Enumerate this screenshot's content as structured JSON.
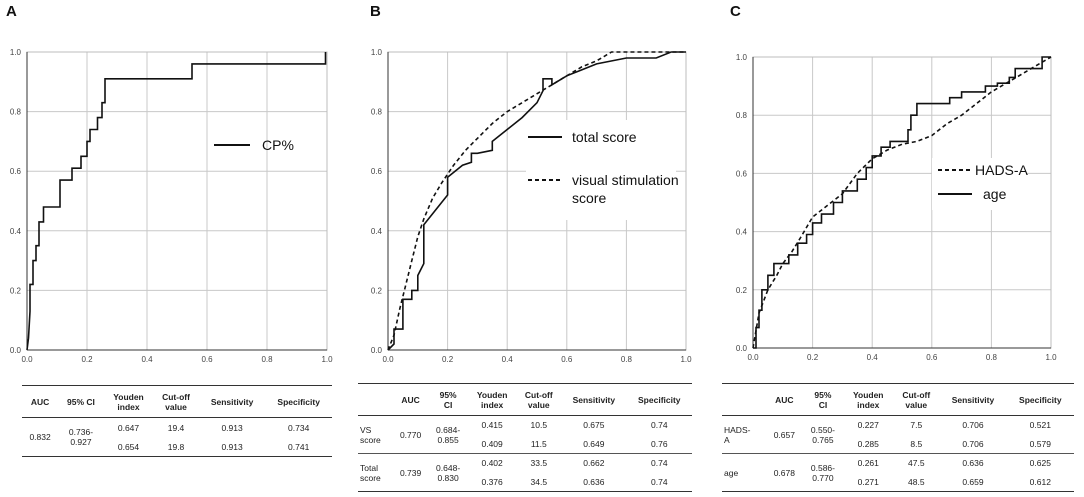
{
  "panels": {
    "a": {
      "letter": "A"
    },
    "b": {
      "letter": "B"
    },
    "c": {
      "letter": "C"
    }
  },
  "axis_ticks": {
    "x": [
      "0.0",
      "0.2",
      "0.4",
      "0.6",
      "0.8",
      "1.0"
    ],
    "y": [
      "0.0",
      "0.2",
      "0.4",
      "0.6",
      "0.8",
      "1.0"
    ]
  },
  "chart_data": [
    {
      "type": "line",
      "panel": "A",
      "xlim": [
        0,
        1
      ],
      "ylim": [
        0,
        1
      ],
      "grid": true,
      "legend_position": "center-right",
      "series": [
        {
          "name": "CP%",
          "style": "solid",
          "x": [
            0,
            0.005,
            0.01,
            0.01,
            0.02,
            0.02,
            0.03,
            0.03,
            0.04,
            0.04,
            0.055,
            0.055,
            0.07,
            0.07,
            0.11,
            0.11,
            0.15,
            0.15,
            0.18,
            0.18,
            0.2,
            0.2,
            0.21,
            0.21,
            0.235,
            0.235,
            0.25,
            0.25,
            0.26,
            0.26,
            0.55,
            0.55,
            0.995,
            0.995
          ],
          "y": [
            0,
            0.04,
            0.13,
            0.22,
            0.22,
            0.3,
            0.3,
            0.35,
            0.35,
            0.43,
            0.43,
            0.48,
            0.48,
            0.48,
            0.48,
            0.57,
            0.57,
            0.61,
            0.61,
            0.65,
            0.65,
            0.7,
            0.7,
            0.74,
            0.74,
            0.78,
            0.78,
            0.83,
            0.83,
            0.91,
            0.91,
            0.96,
            0.96,
            1.0
          ]
        }
      ]
    },
    {
      "type": "line",
      "panel": "B",
      "xlim": [
        0,
        1
      ],
      "ylim": [
        0,
        1
      ],
      "grid": true,
      "legend_position": "top-right",
      "series": [
        {
          "name": "total score",
          "style": "solid",
          "x": [
            0,
            0.02,
            0.02,
            0.05,
            0.05,
            0.08,
            0.08,
            0.1,
            0.1,
            0.12,
            0.12,
            0.16,
            0.2,
            0.2,
            0.25,
            0.28,
            0.28,
            0.3,
            0.35,
            0.35,
            0.4,
            0.45,
            0.5,
            0.52,
            0.52,
            0.55,
            0.55,
            0.6,
            0.65,
            0.7,
            0.8,
            0.9,
            0.95,
            1.0
          ],
          "y": [
            0,
            0.02,
            0.07,
            0.07,
            0.17,
            0.17,
            0.2,
            0.2,
            0.25,
            0.29,
            0.42,
            0.47,
            0.52,
            0.58,
            0.62,
            0.63,
            0.66,
            0.66,
            0.67,
            0.7,
            0.74,
            0.78,
            0.83,
            0.87,
            0.91,
            0.91,
            0.89,
            0.92,
            0.94,
            0.96,
            0.98,
            0.98,
            1.0,
            1.0
          ]
        },
        {
          "name": "visual stimulation score",
          "style": "dashed",
          "x": [
            0,
            0.02,
            0.04,
            0.06,
            0.08,
            0.1,
            0.12,
            0.15,
            0.18,
            0.22,
            0.26,
            0.3,
            0.35,
            0.4,
            0.45,
            0.5,
            0.55,
            0.6,
            0.65,
            0.7,
            0.75,
            0.8,
            0.85,
            0.9,
            0.95,
            1.0
          ],
          "y": [
            0,
            0.05,
            0.14,
            0.22,
            0.3,
            0.38,
            0.44,
            0.51,
            0.56,
            0.62,
            0.67,
            0.71,
            0.76,
            0.8,
            0.83,
            0.86,
            0.89,
            0.92,
            0.95,
            0.97,
            1.0,
            1.0,
            1.0,
            1.0,
            1.0,
            1.0
          ]
        }
      ]
    },
    {
      "type": "line",
      "panel": "C",
      "xlim": [
        0,
        1
      ],
      "ylim": [
        0,
        1
      ],
      "grid": true,
      "legend_position": "center-right",
      "series": [
        {
          "name": "HADS-A",
          "style": "dashed",
          "x": [
            0,
            0.02,
            0.05,
            0.08,
            0.1,
            0.13,
            0.16,
            0.2,
            0.25,
            0.3,
            0.35,
            0.4,
            0.45,
            0.5,
            0.55,
            0.6,
            0.65,
            0.7,
            0.75,
            0.8,
            0.85,
            0.9,
            0.95,
            1.0
          ],
          "y": [
            0,
            0.12,
            0.2,
            0.25,
            0.29,
            0.33,
            0.38,
            0.45,
            0.49,
            0.53,
            0.6,
            0.65,
            0.68,
            0.7,
            0.71,
            0.73,
            0.77,
            0.8,
            0.84,
            0.88,
            0.91,
            0.94,
            0.97,
            1.0
          ]
        },
        {
          "name": "age",
          "style": "solid",
          "x": [
            0,
            0.01,
            0.01,
            0.02,
            0.02,
            0.03,
            0.03,
            0.05,
            0.05,
            0.07,
            0.07,
            0.12,
            0.12,
            0.15,
            0.15,
            0.18,
            0.18,
            0.2,
            0.2,
            0.23,
            0.23,
            0.27,
            0.27,
            0.3,
            0.3,
            0.35,
            0.35,
            0.38,
            0.38,
            0.4,
            0.4,
            0.43,
            0.43,
            0.46,
            0.46,
            0.52,
            0.52,
            0.53,
            0.53,
            0.55,
            0.55,
            0.63,
            0.63,
            0.66,
            0.66,
            0.7,
            0.7,
            0.78,
            0.78,
            0.82,
            0.82,
            0.86,
            0.86,
            0.88,
            0.88,
            0.95,
            0.95,
            0.97,
            0.97,
            1.0
          ],
          "y": [
            0,
            0,
            0.07,
            0.07,
            0.13,
            0.13,
            0.2,
            0.2,
            0.25,
            0.25,
            0.29,
            0.29,
            0.32,
            0.32,
            0.36,
            0.36,
            0.39,
            0.39,
            0.43,
            0.43,
            0.46,
            0.46,
            0.5,
            0.5,
            0.54,
            0.54,
            0.58,
            0.58,
            0.62,
            0.62,
            0.66,
            0.66,
            0.69,
            0.69,
            0.71,
            0.71,
            0.75,
            0.75,
            0.8,
            0.8,
            0.84,
            0.84,
            0.84,
            0.84,
            0.86,
            0.86,
            0.88,
            0.88,
            0.9,
            0.9,
            0.91,
            0.91,
            0.93,
            0.93,
            0.96,
            0.96,
            0.96,
            0.96,
            1.0,
            1.0
          ]
        }
      ]
    }
  ],
  "legends": {
    "a": {
      "item1": "CP%"
    },
    "b": {
      "item1": "total score",
      "item2_line1": "visual stimulation",
      "item2_line2": "score"
    },
    "c": {
      "item1": "HADS-A",
      "item2": "age"
    }
  },
  "table_a": {
    "headers": {
      "auc": "AUC",
      "ci": "95% CI",
      "youden1": "Youden",
      "youden2": "index",
      "cutoff1": "Cut-off",
      "cutoff2": "value",
      "sens": "Sensitivity",
      "spec": "Specificity"
    },
    "auc": "0.832",
    "ci1": "0.736-",
    "ci2": "0.927",
    "rows": [
      {
        "youden": "0.647",
        "cutoff": "19.4",
        "sens": "0.913",
        "spec": "0.734"
      },
      {
        "youden": "0.654",
        "cutoff": "19.8",
        "sens": "0.913",
        "spec": "0.741"
      }
    ]
  },
  "table_b": {
    "headers": {
      "auc": "AUC",
      "ci1": "95%",
      "ci2": "CI",
      "youden1": "Youden",
      "youden2": "index",
      "cutoff1": "Cut-off",
      "cutoff2": "value",
      "sens": "Sensitivity",
      "spec": "Specificity"
    },
    "groups": [
      {
        "label1": "VS",
        "label2": "score",
        "auc": "0.770",
        "ci1": "0.684-",
        "ci2": "0.855",
        "rows": [
          {
            "youden": "0.415",
            "cutoff": "10.5",
            "sens": "0.675",
            "spec": "0.74"
          },
          {
            "youden": "0.409",
            "cutoff": "11.5",
            "sens": "0.649",
            "spec": "0.76"
          }
        ]
      },
      {
        "label1": "Total",
        "label2": "score",
        "auc": "0.739",
        "ci1": "0.648-",
        "ci2": "0.830",
        "rows": [
          {
            "youden": "0.402",
            "cutoff": "33.5",
            "sens": "0.662",
            "spec": "0.74"
          },
          {
            "youden": "0.376",
            "cutoff": "34.5",
            "sens": "0.636",
            "spec": "0.74"
          }
        ]
      }
    ]
  },
  "table_c": {
    "headers": {
      "auc": "AUC",
      "ci1": "95%",
      "ci2": "CI",
      "youden1": "Youden",
      "youden2": "index",
      "cutoff1": "Cut-off",
      "cutoff2": "value",
      "sens": "Sensitivity",
      "spec": "Specificity"
    },
    "groups": [
      {
        "label1": "HADS-",
        "label2": "A",
        "auc": "0.657",
        "ci1": "0.550-",
        "ci2": "0.765",
        "rows": [
          {
            "youden": "0.227",
            "cutoff": "7.5",
            "sens": "0.706",
            "spec": "0.521"
          },
          {
            "youden": "0.285",
            "cutoff": "8.5",
            "sens": "0.706",
            "spec": "0.579"
          }
        ]
      },
      {
        "label1": "age",
        "label2": "",
        "auc": "0.678",
        "ci1": "0.586-",
        "ci2": "0.770",
        "rows": [
          {
            "youden": "0.261",
            "cutoff": "47.5",
            "sens": "0.636",
            "spec": "0.625"
          },
          {
            "youden": "0.271",
            "cutoff": "48.5",
            "sens": "0.659",
            "spec": "0.612"
          }
        ]
      }
    ]
  }
}
